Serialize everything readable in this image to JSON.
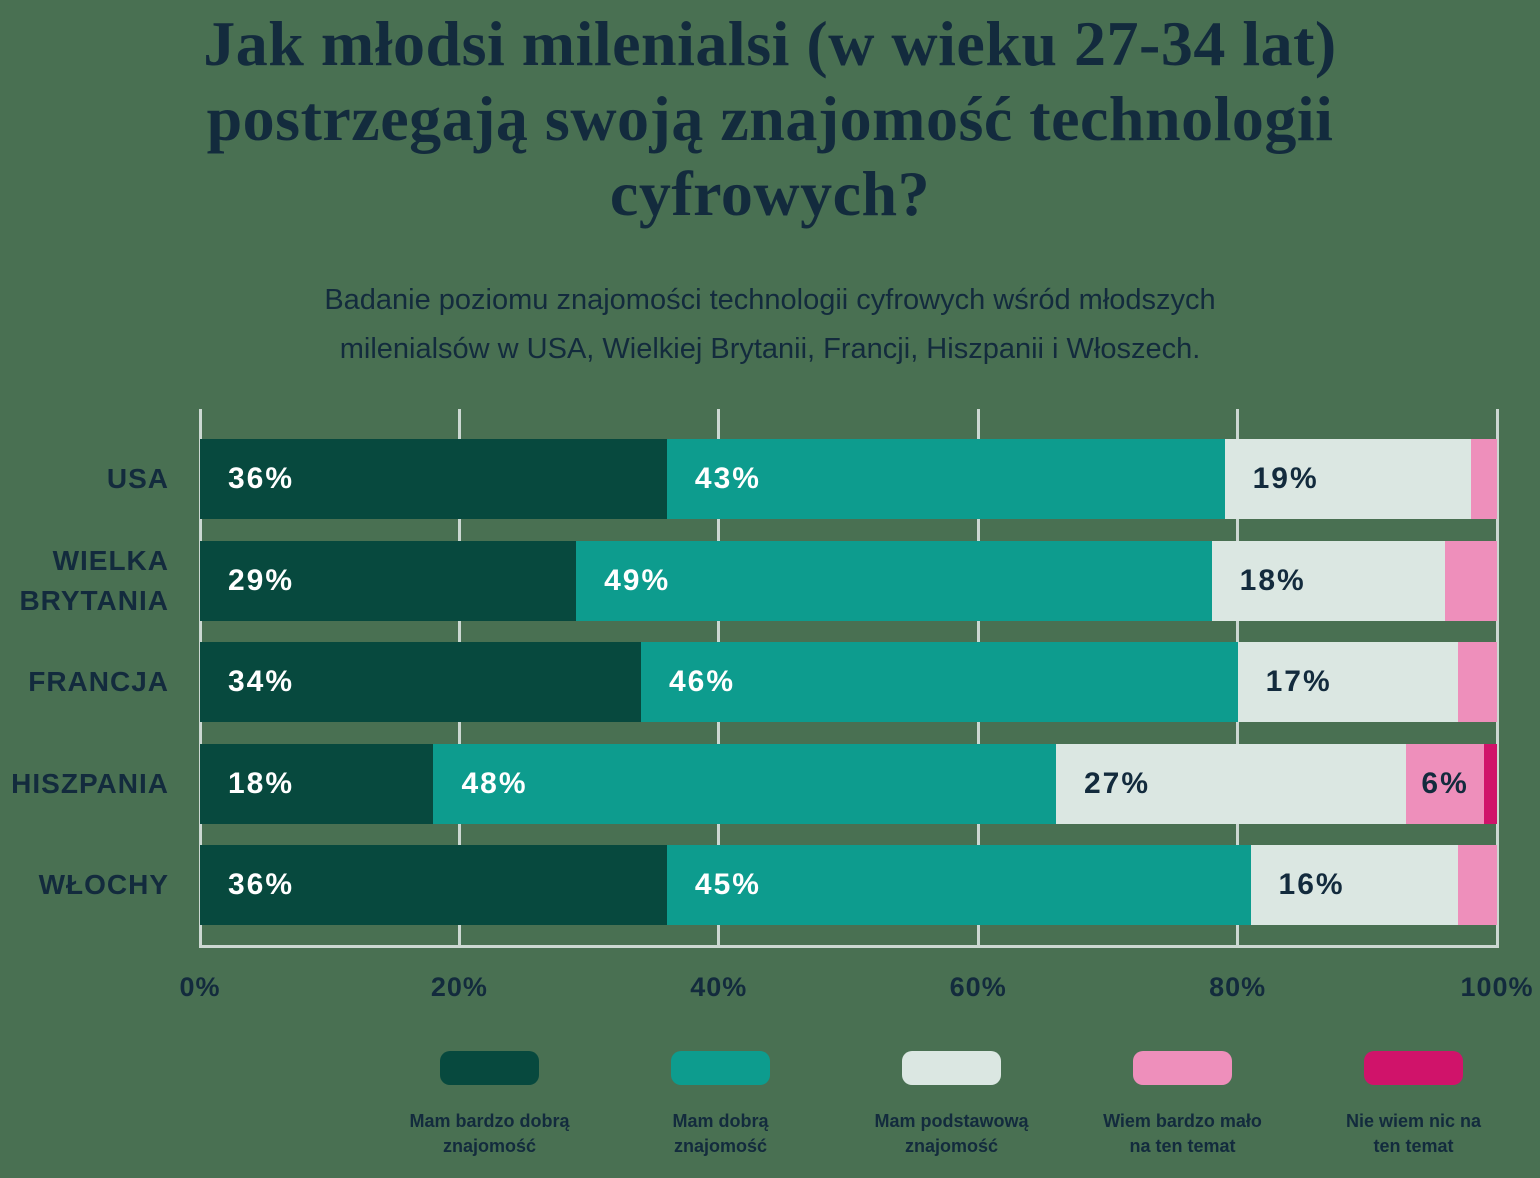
{
  "title": {
    "lines": [
      "Jak młodsi milenialsi (w wieku 27-34 lat)",
      "postrzegają swoją znajomość technologii",
      "cyfrowych?"
    ]
  },
  "subtitle": {
    "lines": [
      "Badanie poziomu znajomości technologii cyfrowych wśród młodszych",
      "milenialsów w USA, Wielkiej Brytanii, Francji, Hiszpanii i Włoszech."
    ]
  },
  "colors": {
    "background": "#497052",
    "text": "#132b3d",
    "gridline": "#ccd8d2",
    "label_on_dark": "#ffffff",
    "label_on_light": "#132b3d"
  },
  "chart_data": {
    "type": "bar",
    "stacked": true,
    "orientation": "horizontal",
    "grid": true,
    "legend_position": "bottom",
    "xlim": [
      0,
      100
    ],
    "x_ticks": [
      "0%",
      "20%",
      "40%",
      "60%",
      "80%",
      "100%"
    ],
    "x_tick_values": [
      0,
      20,
      40,
      60,
      80,
      100
    ],
    "categories": [
      "USA",
      "WIELKA BRYTANIA",
      "FRANCJA",
      "HISZPANIA",
      "WŁOCHY"
    ],
    "category_label_lines": [
      [
        "USA"
      ],
      [
        "WIELKA",
        "BRYTANIA"
      ],
      [
        "FRANCJA"
      ],
      [
        "HISZPANIA"
      ],
      [
        "WŁOCHY"
      ]
    ],
    "series": [
      {
        "name": "Mam bardzo dobrą znajomość",
        "color": "#07493e",
        "label_color": "#ffffff",
        "values": [
          36,
          29,
          34,
          18,
          36
        ]
      },
      {
        "name": "Mam dobrą znajomość",
        "color": "#0d9c8e",
        "label_color": "#ffffff",
        "values": [
          43,
          49,
          46,
          48,
          45
        ]
      },
      {
        "name": "Mam podstawową znajomość",
        "color": "#dbe7e2",
        "label_color": "#132b3d",
        "values": [
          19,
          18,
          17,
          27,
          16
        ]
      },
      {
        "name": "Wiem bardzo mało na ten temat",
        "color": "#ee8fbb",
        "label_color": "#132b3d",
        "values": [
          2,
          4,
          3,
          6,
          3
        ]
      },
      {
        "name": "Nie wiem nic na ten temat",
        "color": "#d0136a",
        "label_color": "#ffffff",
        "values": [
          0,
          0,
          0,
          1,
          0
        ]
      }
    ],
    "bar_labels": [
      [
        "36%",
        "43%",
        "19%",
        "",
        ""
      ],
      [
        "29%",
        "49%",
        "18%",
        "",
        ""
      ],
      [
        "34%",
        "46%",
        "17%",
        "",
        ""
      ],
      [
        "18%",
        "48%",
        "27%",
        "6%",
        ""
      ],
      [
        "36%",
        "45%",
        "16%",
        "",
        ""
      ]
    ]
  },
  "legend": {
    "items": [
      {
        "color": "#07493e",
        "label_lines": [
          "Mam bardzo dobrą",
          "znajomość"
        ]
      },
      {
        "color": "#0d9c8e",
        "label_lines": [
          "Mam dobrą",
          "znajomość"
        ]
      },
      {
        "color": "#dbe7e2",
        "label_lines": [
          "Mam podstawową",
          "znajomość"
        ]
      },
      {
        "color": "#ee8fbb",
        "label_lines": [
          "Wiem bardzo mało",
          "na ten temat"
        ]
      },
      {
        "color": "#d0136a",
        "label_lines": [
          "Nie wiem nic na",
          "ten temat"
        ]
      }
    ]
  }
}
